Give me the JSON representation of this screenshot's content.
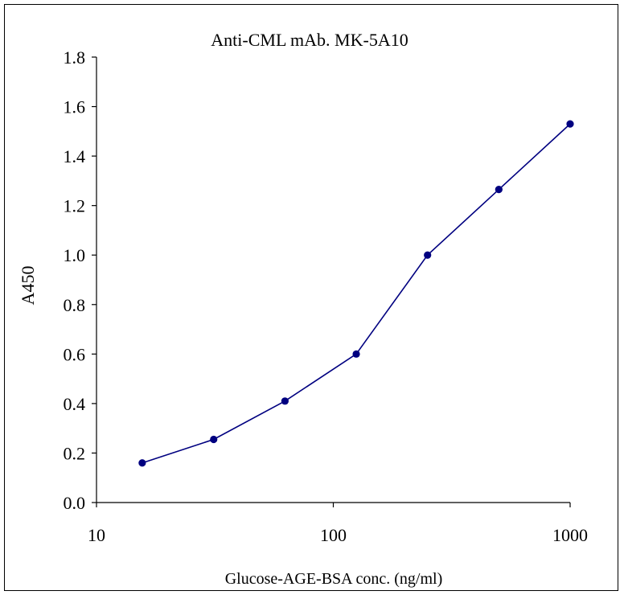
{
  "chart_data": {
    "type": "line",
    "title": "Anti-CML mAb. MK-5A10",
    "xlabel": "Glucose-AGE-BSA conc. (ng/ml)",
    "ylabel": "A450",
    "xscale": "log",
    "xlim": [
      10,
      1000
    ],
    "ylim": [
      0.0,
      1.8
    ],
    "x_ticks": [
      10,
      100,
      1000
    ],
    "x_tick_labels": [
      "10",
      "100",
      "1000"
    ],
    "y_ticks": [
      0.0,
      0.2,
      0.4,
      0.6,
      0.8,
      1.0,
      1.2,
      1.4,
      1.6,
      1.8
    ],
    "y_tick_labels": [
      "0.0",
      "0.2",
      "0.4",
      "0.6",
      "0.8",
      "1.0",
      "1.2",
      "1.4",
      "1.6",
      "1.8"
    ],
    "grid": false,
    "legend": false,
    "series": [
      {
        "x": [
          15.6,
          31.25,
          62.5,
          125,
          250,
          500,
          1000
        ],
        "y": [
          0.16,
          0.255,
          0.41,
          0.6,
          1.0,
          1.265,
          1.53
        ],
        "color": "#000080",
        "marker": "circle"
      }
    ]
  }
}
